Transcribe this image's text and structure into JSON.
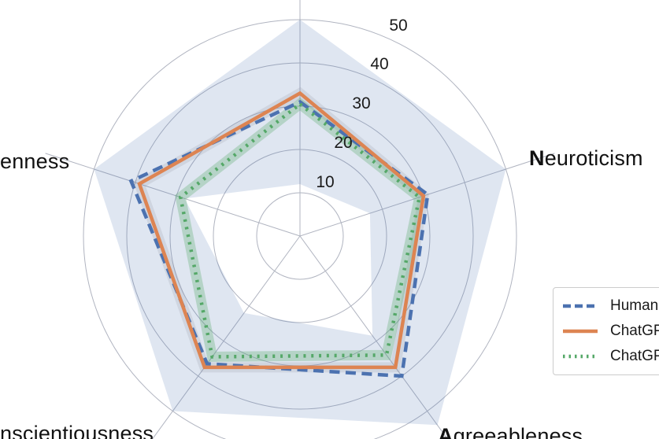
{
  "chart_data": {
    "type": "radar",
    "axes_screen_order": [
      "top",
      "right",
      "bottom-right",
      "bottom-left",
      "left"
    ],
    "axis_labels": [
      {
        "id": "left-axis",
        "text": "enness"
      },
      {
        "id": "right-axis",
        "text": "Neuroticism"
      },
      {
        "id": "bottom-right-axis",
        "text": "Agreeableness"
      },
      {
        "id": "bottom-left-axis",
        "text": "nscientiousness"
      }
    ],
    "radial_ticks": [
      10,
      20,
      30,
      40,
      50
    ],
    "tick_labels": [
      "10",
      "20",
      "30",
      "40",
      "50"
    ],
    "r_max": 50,
    "series": [
      {
        "name": "human",
        "legend_label": "Human",
        "line_style": "dashed",
        "color": "#4C72B0",
        "values": [
          31,
          31,
          40,
          36.5,
          41
        ]
      },
      {
        "name": "chatgpt-solid",
        "legend_label": "ChatGP",
        "line_style": "solid",
        "color": "#DD8452",
        "halo_color": "rgba(145,145,160,0.20)",
        "values": [
          33,
          30,
          37.5,
          37.5,
          39
        ]
      },
      {
        "name": "chatgpt-dotted",
        "legend_label": "ChatGP",
        "line_style": "dotted",
        "color": "#55A868",
        "halo_color": "rgba(85,168,104,0.30)",
        "values": [
          30.5,
          29,
          34,
          34.5,
          29
        ]
      }
    ],
    "human_range_band": {
      "fill": "rgba(76,114,176,0.18)",
      "outer": [
        50,
        50,
        54,
        50,
        50
      ],
      "inner": [
        12,
        17,
        28.5,
        22,
        28
      ]
    },
    "grid_color": "#b0b4c0",
    "tick_label_color": "#1a1a1a",
    "axis_label_color": "#111111"
  }
}
